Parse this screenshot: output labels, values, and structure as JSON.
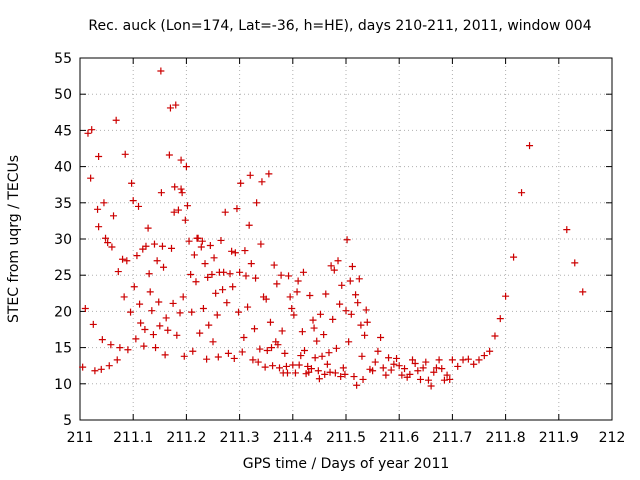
{
  "chart_data": {
    "type": "scatter",
    "title": "Rec. auck (Lon=174, Lat=-36, h=HE), days 210-211, 2011, window 004",
    "xlabel": "GPS time / Days of year 2011",
    "ylabel": "STEC from uqrg / TECUs",
    "xlim": [
      211,
      212
    ],
    "ylim": [
      5,
      55
    ],
    "xticks": [
      "211",
      "211.1",
      "211.2",
      "211.3",
      "211.4",
      "211.5",
      "211.6",
      "211.7",
      "211.8",
      "211.9",
      "212"
    ],
    "yticks": [
      "5",
      "10",
      "15",
      "20",
      "25",
      "30",
      "35",
      "40",
      "45",
      "50",
      "55"
    ],
    "grid": true,
    "marker": "+",
    "color": "#cc0000",
    "series": [
      {
        "points": [
          [
            211.005,
            12.3
          ],
          [
            211.01,
            20.4
          ],
          [
            211.015,
            44.6
          ],
          [
            211.02,
            38.4
          ],
          [
            211.022,
            45.1
          ],
          [
            211.025,
            18.2
          ],
          [
            211.028,
            11.8
          ],
          [
            211.033,
            34.1
          ],
          [
            211.035,
            41.4
          ],
          [
            211.035,
            31.7
          ],
          [
            211.04,
            12.0
          ],
          [
            211.042,
            16.1
          ],
          [
            211.045,
            35.0
          ],
          [
            211.048,
            30.1
          ],
          [
            211.052,
            29.5
          ],
          [
            211.055,
            12.5
          ],
          [
            211.058,
            15.4
          ],
          [
            211.06,
            28.9
          ],
          [
            211.063,
            33.2
          ],
          [
            211.068,
            46.4
          ],
          [
            211.07,
            13.3
          ],
          [
            211.072,
            25.5
          ],
          [
            211.075,
            15.0
          ],
          [
            211.08,
            27.2
          ],
          [
            211.083,
            22.0
          ],
          [
            211.085,
            41.7
          ],
          [
            211.088,
            27.0
          ],
          [
            211.09,
            14.7
          ],
          [
            211.095,
            19.9
          ],
          [
            211.097,
            37.7
          ],
          [
            211.1,
            35.3
          ],
          [
            211.102,
            23.4
          ],
          [
            211.105,
            16.2
          ],
          [
            211.107,
            27.7
          ],
          [
            211.11,
            34.5
          ],
          [
            211.112,
            21.0
          ],
          [
            211.114,
            18.4
          ],
          [
            211.118,
            28.6
          ],
          [
            211.12,
            15.2
          ],
          [
            211.122,
            17.5
          ],
          [
            211.124,
            29.0
          ],
          [
            211.128,
            31.5
          ],
          [
            211.13,
            25.2
          ],
          [
            211.132,
            22.7
          ],
          [
            211.135,
            20.1
          ],
          [
            211.138,
            16.8
          ],
          [
            211.14,
            29.3
          ],
          [
            211.142,
            15.0
          ],
          [
            211.145,
            27.0
          ],
          [
            211.148,
            21.3
          ],
          [
            211.15,
            18.0
          ],
          [
            211.152,
            53.2
          ],
          [
            211.153,
            36.4
          ],
          [
            211.155,
            29.0
          ],
          [
            211.157,
            26.1
          ],
          [
            211.16,
            14.0
          ],
          [
            211.162,
            19.1
          ],
          [
            211.165,
            17.4
          ],
          [
            211.168,
            41.6
          ],
          [
            211.17,
            48.1
          ],
          [
            211.172,
            28.7
          ],
          [
            211.175,
            21.1
          ],
          [
            211.177,
            33.7
          ],
          [
            211.178,
            37.2
          ],
          [
            211.18,
            48.5
          ],
          [
            211.182,
            16.7
          ],
          [
            211.185,
            34.0
          ],
          [
            211.188,
            19.8
          ],
          [
            211.19,
            36.9
          ],
          [
            211.19,
            40.9
          ],
          [
            211.192,
            36.4
          ],
          [
            211.194,
            22.0
          ],
          [
            211.196,
            13.8
          ],
          [
            211.198,
            32.6
          ],
          [
            211.2,
            40.0
          ],
          [
            211.202,
            34.6
          ],
          [
            211.205,
            29.7
          ],
          [
            211.208,
            25.1
          ],
          [
            211.21,
            19.9
          ],
          [
            211.212,
            14.5
          ],
          [
            211.215,
            27.8
          ],
          [
            211.218,
            24.1
          ],
          [
            211.22,
            30.1
          ],
          [
            211.222,
            30.1
          ],
          [
            211.225,
            17.0
          ],
          [
            211.228,
            28.9
          ],
          [
            211.23,
            29.7
          ],
          [
            211.232,
            20.4
          ],
          [
            211.235,
            26.6
          ],
          [
            211.238,
            13.4
          ],
          [
            211.24,
            24.7
          ],
          [
            211.242,
            18.1
          ],
          [
            211.245,
            29.1
          ],
          [
            211.248,
            25.1
          ],
          [
            211.25,
            15.8
          ],
          [
            211.252,
            27.4
          ],
          [
            211.255,
            22.5
          ],
          [
            211.258,
            19.5
          ],
          [
            211.26,
            13.7
          ],
          [
            211.262,
            25.4
          ],
          [
            211.265,
            29.8
          ],
          [
            211.268,
            23.0
          ],
          [
            211.27,
            25.4
          ],
          [
            211.273,
            33.7
          ],
          [
            211.276,
            21.2
          ],
          [
            211.279,
            14.2
          ],
          [
            211.282,
            25.2
          ],
          [
            211.285,
            28.3
          ],
          [
            211.287,
            23.4
          ],
          [
            211.29,
            13.5
          ],
          [
            211.292,
            28.1
          ],
          [
            211.295,
            34.2
          ],
          [
            211.298,
            19.9
          ],
          [
            211.3,
            25.4
          ],
          [
            211.302,
            37.7
          ],
          [
            211.305,
            14.4
          ],
          [
            211.308,
            16.4
          ],
          [
            211.31,
            28.4
          ],
          [
            211.312,
            24.9
          ],
          [
            211.315,
            20.6
          ],
          [
            211.318,
            31.9
          ],
          [
            211.32,
            38.8
          ],
          [
            211.322,
            26.6
          ],
          [
            211.325,
            13.3
          ],
          [
            211.328,
            17.6
          ],
          [
            211.33,
            24.6
          ],
          [
            211.332,
            35.0
          ],
          [
            211.335,
            13.0
          ],
          [
            211.338,
            14.8
          ],
          [
            211.34,
            29.3
          ],
          [
            211.342,
            37.9
          ],
          [
            211.345,
            22.0
          ],
          [
            211.348,
            12.3
          ],
          [
            211.35,
            21.7
          ],
          [
            211.352,
            14.6
          ],
          [
            211.355,
            39.0
          ],
          [
            211.358,
            18.5
          ],
          [
            211.36,
            15.0
          ],
          [
            211.362,
            12.5
          ],
          [
            211.365,
            26.4
          ],
          [
            211.368,
            15.8
          ],
          [
            211.37,
            23.8
          ],
          [
            211.372,
            15.4
          ],
          [
            211.375,
            12.2
          ],
          [
            211.378,
            25.0
          ],
          [
            211.38,
            17.3
          ],
          [
            211.382,
            11.5
          ],
          [
            211.385,
            14.2
          ],
          [
            211.388,
            12.4
          ],
          [
            211.39,
            11.5
          ],
          [
            211.392,
            24.9
          ],
          [
            211.395,
            22.0
          ],
          [
            211.398,
            20.4
          ],
          [
            211.4,
            12.6
          ],
          [
            211.402,
            19.5
          ],
          [
            211.405,
            11.5
          ],
          [
            211.408,
            22.7
          ],
          [
            211.41,
            24.2
          ],
          [
            211.412,
            12.6
          ],
          [
            211.415,
            13.9
          ],
          [
            211.418,
            17.2
          ],
          [
            211.42,
            25.4
          ],
          [
            211.422,
            14.6
          ],
          [
            211.425,
            11.4
          ],
          [
            211.428,
            12.4
          ],
          [
            211.43,
            11.6
          ],
          [
            211.432,
            22.2
          ],
          [
            211.435,
            12.1
          ],
          [
            211.438,
            18.8
          ],
          [
            211.44,
            17.7
          ],
          [
            211.442,
            13.6
          ],
          [
            211.445,
            15.9
          ],
          [
            211.448,
            11.8
          ],
          [
            211.45,
            10.7
          ],
          [
            211.452,
            19.6
          ],
          [
            211.455,
            13.8
          ],
          [
            211.458,
            16.8
          ],
          [
            211.46,
            11.3
          ],
          [
            211.462,
            22.4
          ],
          [
            211.465,
            12.7
          ],
          [
            211.468,
            14.3
          ],
          [
            211.47,
            11.6
          ],
          [
            211.472,
            26.3
          ],
          [
            211.475,
            18.9
          ],
          [
            211.478,
            25.7
          ],
          [
            211.48,
            11.5
          ],
          [
            211.482,
            14.9
          ],
          [
            211.485,
            27.0
          ],
          [
            211.488,
            21.0
          ],
          [
            211.49,
            11.0
          ],
          [
            211.492,
            23.6
          ],
          [
            211.495,
            12.2
          ],
          [
            211.498,
            11.3
          ],
          [
            211.5,
            20.1
          ],
          [
            211.502,
            29.9
          ],
          [
            211.505,
            15.8
          ],
          [
            211.508,
            24.2
          ],
          [
            211.51,
            19.6
          ],
          [
            211.512,
            26.2
          ],
          [
            211.515,
            11.0
          ],
          [
            211.518,
            22.3
          ],
          [
            211.52,
            9.8
          ],
          [
            211.522,
            21.2
          ],
          [
            211.525,
            24.5
          ],
          [
            211.528,
            18.1
          ],
          [
            211.53,
            13.8
          ],
          [
            211.532,
            10.6
          ],
          [
            211.535,
            16.7
          ],
          [
            211.538,
            20.2
          ],
          [
            211.54,
            18.5
          ],
          [
            211.545,
            12.0
          ],
          [
            211.55,
            11.8
          ],
          [
            211.555,
            13.0
          ],
          [
            211.56,
            14.5
          ],
          [
            211.565,
            16.4
          ],
          [
            211.57,
            12.2
          ],
          [
            211.575,
            11.2
          ],
          [
            211.58,
            13.6
          ],
          [
            211.585,
            11.9
          ],
          [
            211.59,
            12.7
          ],
          [
            211.595,
            13.5
          ],
          [
            211.6,
            12.5
          ],
          [
            211.605,
            11.2
          ],
          [
            211.61,
            12.1
          ],
          [
            211.615,
            10.9
          ],
          [
            211.62,
            11.3
          ],
          [
            211.625,
            13.3
          ],
          [
            211.63,
            12.8
          ],
          [
            211.635,
            11.8
          ],
          [
            211.64,
            10.6
          ],
          [
            211.645,
            12.2
          ],
          [
            211.65,
            13.0
          ],
          [
            211.655,
            10.5
          ],
          [
            211.66,
            9.7
          ],
          [
            211.665,
            11.6
          ],
          [
            211.67,
            12.2
          ],
          [
            211.675,
            13.3
          ],
          [
            211.68,
            12.1
          ],
          [
            211.685,
            10.5
          ],
          [
            211.69,
            11.2
          ],
          [
            211.695,
            10.6
          ],
          [
            211.7,
            13.3
          ],
          [
            211.71,
            12.4
          ],
          [
            211.72,
            13.3
          ],
          [
            211.73,
            13.4
          ],
          [
            211.74,
            12.7
          ],
          [
            211.75,
            13.3
          ],
          [
            211.76,
            13.9
          ],
          [
            211.77,
            14.5
          ],
          [
            211.78,
            16.6
          ],
          [
            211.79,
            19.0
          ],
          [
            211.8,
            22.1
          ],
          [
            211.815,
            27.5
          ],
          [
            211.83,
            36.4
          ],
          [
            211.845,
            42.9
          ],
          [
            211.915,
            31.3
          ],
          [
            211.93,
            26.7
          ],
          [
            211.945,
            22.7
          ]
        ]
      }
    ]
  }
}
